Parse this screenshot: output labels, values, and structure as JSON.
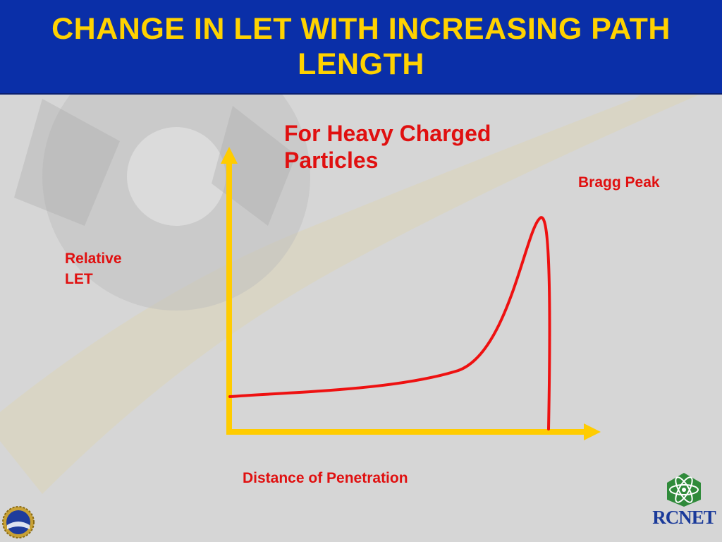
{
  "slide": {
    "title": "CHANGE IN LET WITH INCREASING PATH LENGTH",
    "colors": {
      "header_bg": "#0a2fa8",
      "title": "#ffd200",
      "axis": "#ffcc00",
      "curve": "#ee1111",
      "label": "#e01010"
    }
  },
  "diagram": {
    "subtitle": "For Heavy Charged Particles",
    "peak_label": "Bragg Peak",
    "y_axis_label": "Relative LET",
    "x_axis_label": "Distance of Penetration"
  },
  "logos": {
    "left": "nsf-logo-icon",
    "right": "rcnet-logo-icon",
    "right_text": "RCNET"
  }
}
